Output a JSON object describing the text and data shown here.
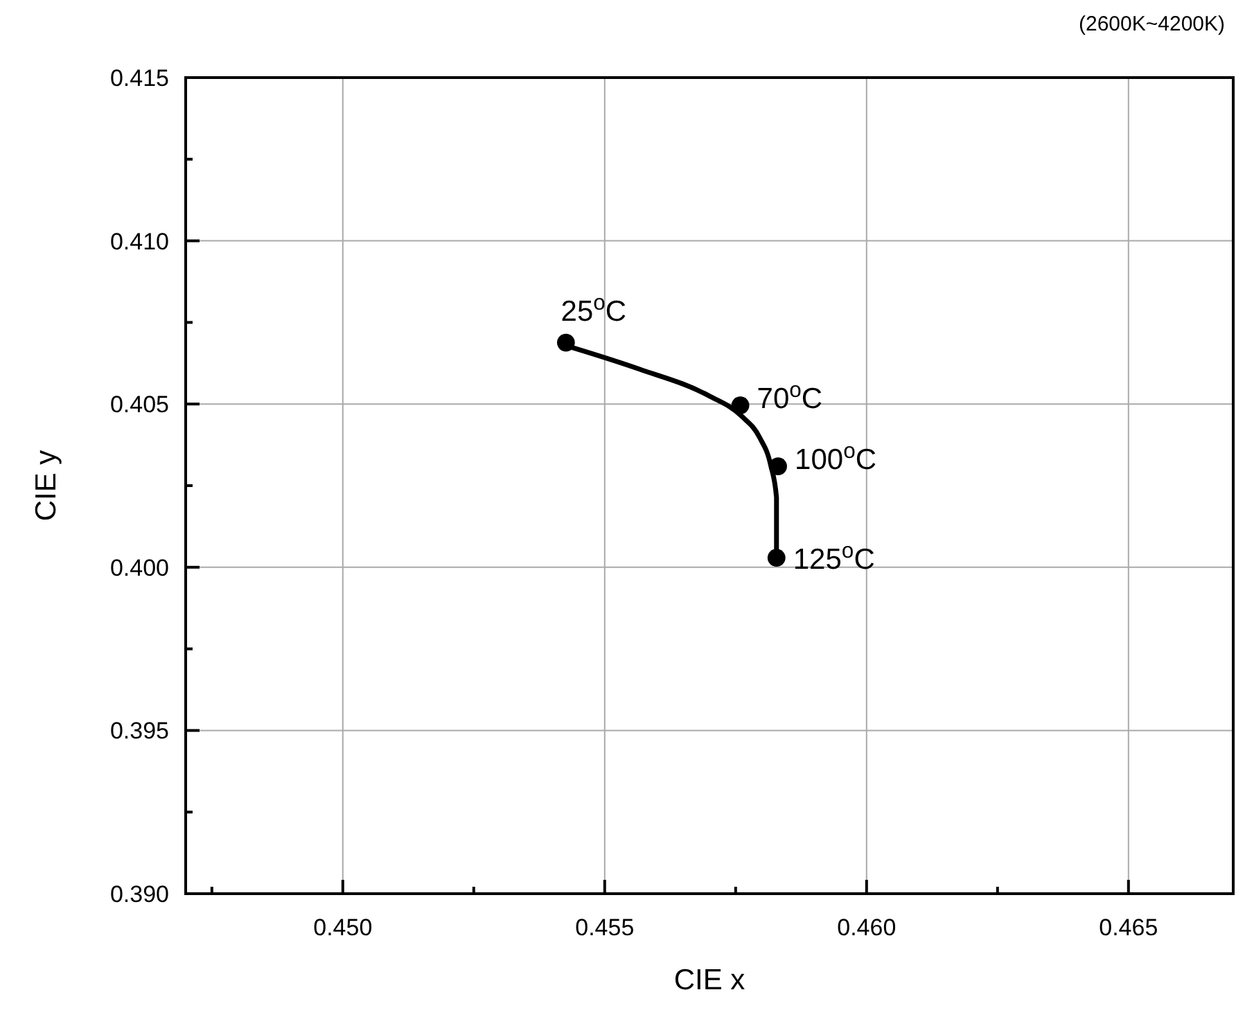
{
  "chart_data": {
    "type": "scatter",
    "xlabel": "CIE x",
    "ylabel": "CIE y",
    "xlim": [
      0.447,
      0.467
    ],
    "ylim": [
      0.39,
      0.415
    ],
    "xticks": [
      {
        "value": 0.4475,
        "label": null
      },
      {
        "value": 0.45,
        "label": "0.450"
      },
      {
        "value": 0.4525,
        "label": null
      },
      {
        "value": 0.455,
        "label": "0.455"
      },
      {
        "value": 0.4575,
        "label": null
      },
      {
        "value": 0.46,
        "label": "0.460"
      },
      {
        "value": 0.4625,
        "label": null
      },
      {
        "value": 0.465,
        "label": "0.465"
      }
    ],
    "yticks": [
      {
        "value": 0.39,
        "label": "0.390"
      },
      {
        "value": 0.3925,
        "label": null
      },
      {
        "value": 0.395,
        "label": "0.395"
      },
      {
        "value": 0.3975,
        "label": null
      },
      {
        "value": 0.4,
        "label": "0.400"
      },
      {
        "value": 0.4025,
        "label": null
      },
      {
        "value": 0.405,
        "label": "0.405"
      },
      {
        "value": 0.4075,
        "label": null
      },
      {
        "value": 0.41,
        "label": "0.410"
      },
      {
        "value": 0.4125,
        "label": null
      },
      {
        "value": 0.415,
        "label": "0.415"
      }
    ],
    "grid": true,
    "series": [
      {
        "type": "line",
        "color": "#000000",
        "line_style": "solid",
        "marker": "none",
        "x": [
          0.45426,
          0.45566,
          0.45698,
          0.45762,
          0.45796,
          0.45817,
          0.45828,
          0.45828,
          0.45828
        ],
        "values": [
          0.40679,
          0.40607,
          0.40526,
          0.40462,
          0.40397,
          0.40312,
          0.40214,
          0.40115,
          0.40034
        ]
      },
      {
        "color": "#000000",
        "marker": "circle",
        "x": [
          0.45426,
          0.45759,
          0.45831,
          0.45828
        ],
        "values": [
          0.40688,
          0.40496,
          0.40309,
          0.40029
        ]
      }
    ],
    "annotations": [
      {
        "text": "25$^{o}$C",
        "x": 0.45426,
        "y": 0.40688
      },
      {
        "text": "70$^{o}$C",
        "x": 0.45759,
        "y": 0.40496
      },
      {
        "text": "100$^{o}$C",
        "x": 0.45831,
        "y": 0.40309
      },
      {
        "text": "125$^{o}$C",
        "x": 0.45828,
        "y": 0.40029
      },
      "(2600K~4200K)"
    ]
  }
}
